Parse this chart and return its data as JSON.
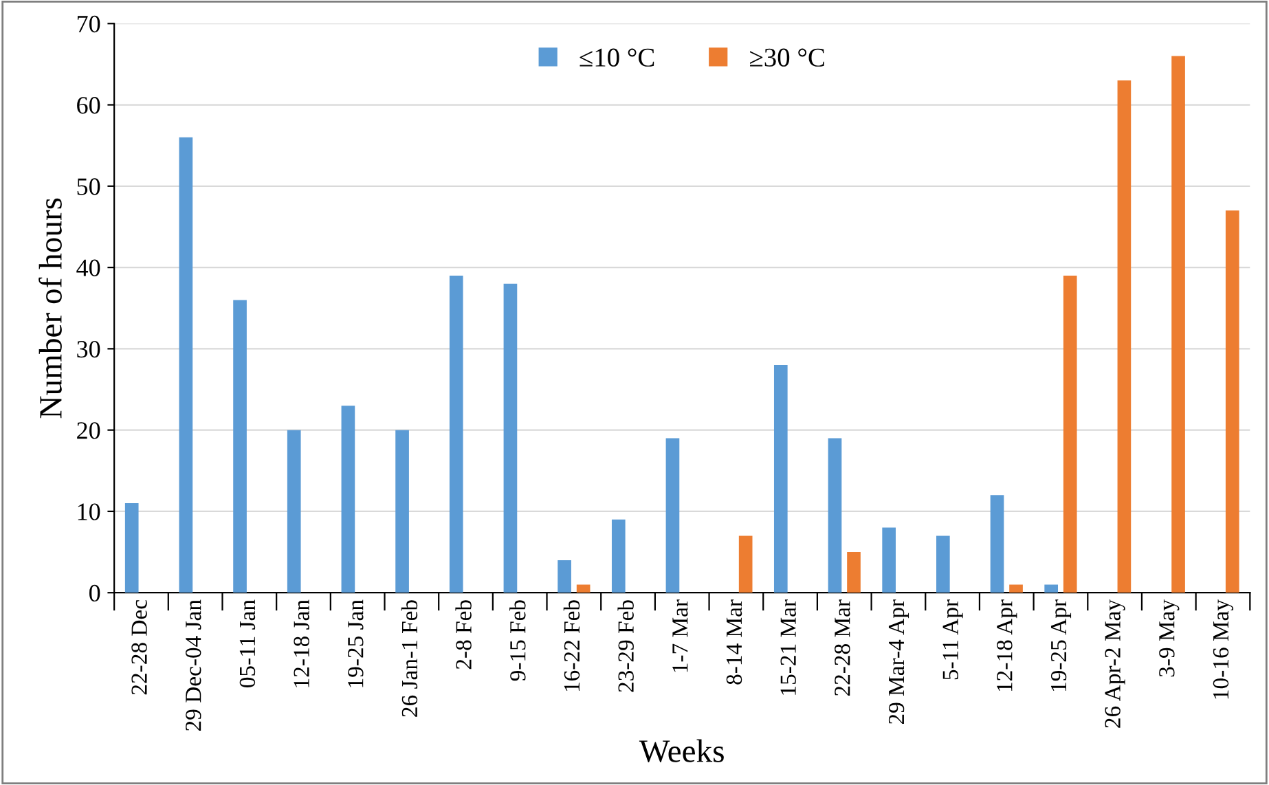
{
  "chart_data": {
    "type": "bar",
    "xlabel": "Weeks",
    "ylabel": "Number of hours",
    "categories": [
      "22-28 Dec",
      "29 Dec-04 Jan",
      "05-11 Jan",
      "12-18 Jan",
      "19-25 Jan",
      "26 Jan-1 Feb",
      "2-8 Feb",
      "9-15 Feb",
      "16-22 Feb",
      "23-29 Feb",
      "1-7 Mar",
      "8-14 Mar",
      "15-21 Mar",
      "22-28 Mar",
      "29 Mar-4 Apr",
      "5-11 Apr",
      "12-18 Apr",
      "19-25 Apr",
      "26 Apr-2 May",
      "3-9 May",
      "10-16 May"
    ],
    "series": [
      {
        "name": "≤10 °C",
        "color": "#5b9bd5",
        "values": [
          11,
          56,
          36,
          20,
          23,
          20,
          39,
          38,
          4,
          9,
          19,
          0,
          28,
          19,
          8,
          7,
          12,
          1,
          0,
          0,
          0
        ]
      },
      {
        "name": "≥30 °C",
        "color": "#ed7d31",
        "values": [
          0,
          0,
          0,
          0,
          0,
          0,
          0,
          0,
          1,
          0,
          0,
          7,
          0,
          5,
          0,
          0,
          1,
          39,
          63,
          66,
          47
        ]
      }
    ],
    "ylim": [
      0,
      70
    ],
    "yticks": [
      0,
      10,
      20,
      30,
      40,
      50,
      60,
      70
    ],
    "grid": "y",
    "legend": "top"
  }
}
